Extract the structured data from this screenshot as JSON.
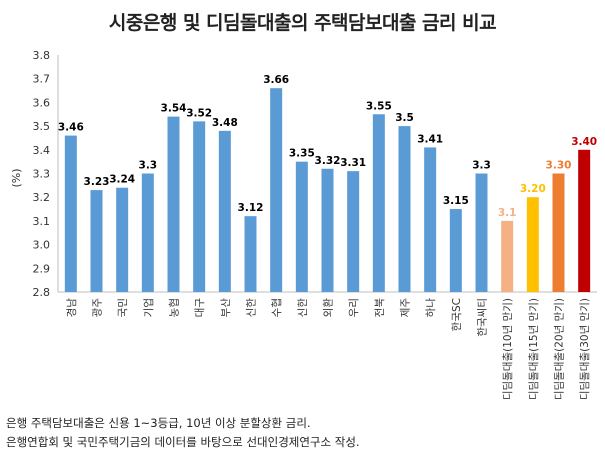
{
  "chart_data": {
    "type": "bar",
    "title": "시중은행 및 디딤돌대출의 주택담보대출 금리 비교",
    "ylabel": "(%)",
    "xlabel": "",
    "ylim": [
      2.8,
      3.8
    ],
    "yticks": [
      "2.8",
      "2.9",
      "3.0",
      "3.1",
      "3.2",
      "3.3",
      "3.4",
      "3.5",
      "3.6",
      "3.7",
      "3.8"
    ],
    "grid": false,
    "categories": [
      "경남",
      "광주",
      "국민",
      "기업",
      "농협",
      "대구",
      "부산",
      "신한",
      "수협",
      "신한",
      "외환",
      "우리",
      "전북",
      "제주",
      "하나",
      "한국SC",
      "한국씨티",
      "디딤돌대출(10년 만기)",
      "디딤돌대출(15년 만기)",
      "디딤돌대출(20년 만기)",
      "디딤돌대출(30년 만기)"
    ],
    "values": [
      3.46,
      3.23,
      3.24,
      3.3,
      3.54,
      3.52,
      3.48,
      3.12,
      3.66,
      3.35,
      3.32,
      3.31,
      3.55,
      3.5,
      3.41,
      3.15,
      3.3,
      3.1,
      3.2,
      3.3,
      3.4
    ],
    "value_labels": [
      "3.46",
      "3.23",
      "3.24",
      "3.3",
      "3.54",
      "3.52",
      "3.48",
      "3.12",
      "3.66",
      "3.35",
      "3.32",
      "3.31",
      "3.55",
      "3.5",
      "3.41",
      "3.15",
      "3.3",
      "3.1",
      "3.20",
      "3.30",
      "3.40"
    ],
    "bar_colors": [
      "#5b9bd5",
      "#5b9bd5",
      "#5b9bd5",
      "#5b9bd5",
      "#5b9bd5",
      "#5b9bd5",
      "#5b9bd5",
      "#5b9bd5",
      "#5b9bd5",
      "#5b9bd5",
      "#5b9bd5",
      "#5b9bd5",
      "#5b9bd5",
      "#5b9bd5",
      "#5b9bd5",
      "#5b9bd5",
      "#5b9bd5",
      "#f4b183",
      "#ffc000",
      "#ed7d31",
      "#c00000"
    ],
    "label_colors": [
      "#000000",
      "#000000",
      "#000000",
      "#000000",
      "#000000",
      "#000000",
      "#000000",
      "#000000",
      "#000000",
      "#000000",
      "#000000",
      "#000000",
      "#000000",
      "#000000",
      "#000000",
      "#000000",
      "#000000",
      "#f4b183",
      "#ffc000",
      "#ed7d31",
      "#c00000"
    ]
  },
  "notes": [
    "은행 주택담보대출은 신용 1~3등급, 10년 이상 분할상환 금리.",
    "은행연합회 및 국민주택기금의 데이터를 바탕으로 선대인경제연구소 작성."
  ]
}
